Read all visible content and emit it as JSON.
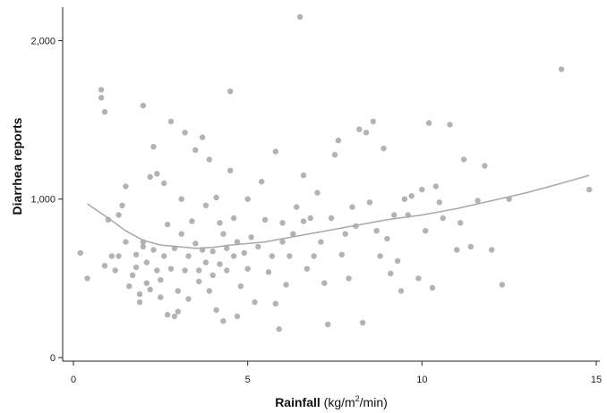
{
  "chart_data": {
    "type": "scatter",
    "title": "",
    "xlabel": {
      "bold": "Rainfall",
      "rest_open": " (kg/m",
      "sup": "2",
      "rest_close": "/min)"
    },
    "ylabel": "Diarrhea reports",
    "xlim": [
      0,
      15
    ],
    "ylim": [
      0,
      2200
    ],
    "xticks": [
      0,
      5,
      10,
      15
    ],
    "xtick_labels": [
      "0",
      "5",
      "10",
      "15"
    ],
    "yticks": [
      0,
      1000,
      2000
    ],
    "ytick_labels": [
      "0",
      "1,000",
      "2,000"
    ],
    "grid": false,
    "legend": "none",
    "point_color": "#9a9a9a",
    "line_color": "#a8a8a8",
    "points": [
      [
        0.2,
        660
      ],
      [
        0.4,
        500
      ],
      [
        0.8,
        1690
      ],
      [
        0.8,
        1640
      ],
      [
        0.9,
        1550
      ],
      [
        0.9,
        580
      ],
      [
        1.0,
        870
      ],
      [
        1.1,
        640
      ],
      [
        1.2,
        550
      ],
      [
        1.3,
        900
      ],
      [
        1.3,
        640
      ],
      [
        1.4,
        960
      ],
      [
        1.5,
        730
      ],
      [
        1.5,
        1080
      ],
      [
        1.6,
        450
      ],
      [
        1.7,
        520
      ],
      [
        1.8,
        570
      ],
      [
        1.8,
        650
      ],
      [
        1.9,
        350
      ],
      [
        1.9,
        400
      ],
      [
        2.0,
        700
      ],
      [
        2.0,
        730
      ],
      [
        2.0,
        1590
      ],
      [
        2.1,
        600
      ],
      [
        2.1,
        470
      ],
      [
        2.2,
        430
      ],
      [
        2.2,
        1140
      ],
      [
        2.3,
        680
      ],
      [
        2.3,
        1330
      ],
      [
        2.4,
        1160
      ],
      [
        2.4,
        550
      ],
      [
        2.5,
        490
      ],
      [
        2.5,
        380
      ],
      [
        2.6,
        1100
      ],
      [
        2.6,
        640
      ],
      [
        2.7,
        270
      ],
      [
        2.7,
        840
      ],
      [
        2.8,
        560
      ],
      [
        2.8,
        1490
      ],
      [
        2.9,
        690
      ],
      [
        2.9,
        260
      ],
      [
        3.0,
        290
      ],
      [
        3.0,
        420
      ],
      [
        3.1,
        780
      ],
      [
        3.1,
        1000
      ],
      [
        3.2,
        1420
      ],
      [
        3.2,
        550
      ],
      [
        3.3,
        640
      ],
      [
        3.3,
        370
      ],
      [
        3.4,
        860
      ],
      [
        3.5,
        1310
      ],
      [
        3.5,
        720
      ],
      [
        3.6,
        480
      ],
      [
        3.6,
        550
      ],
      [
        3.7,
        680
      ],
      [
        3.7,
        1390
      ],
      [
        3.8,
        600
      ],
      [
        3.8,
        960
      ],
      [
        3.9,
        1250
      ],
      [
        3.9,
        420
      ],
      [
        4.0,
        520
      ],
      [
        4.0,
        670
      ],
      [
        4.1,
        1010
      ],
      [
        4.1,
        300
      ],
      [
        4.2,
        590
      ],
      [
        4.2,
        850
      ],
      [
        4.3,
        780
      ],
      [
        4.3,
        230
      ],
      [
        4.4,
        690
      ],
      [
        4.4,
        550
      ],
      [
        4.5,
        1680
      ],
      [
        4.5,
        1180
      ],
      [
        4.6,
        640
      ],
      [
        4.6,
        880
      ],
      [
        4.7,
        730
      ],
      [
        4.7,
        260
      ],
      [
        4.8,
        450
      ],
      [
        4.9,
        660
      ],
      [
        5.0,
        1000
      ],
      [
        5.0,
        560
      ],
      [
        5.1,
        760
      ],
      [
        5.2,
        350
      ],
      [
        5.3,
        700
      ],
      [
        5.4,
        1110
      ],
      [
        5.5,
        870
      ],
      [
        5.6,
        540
      ],
      [
        5.7,
        640
      ],
      [
        5.8,
        340
      ],
      [
        5.8,
        1300
      ],
      [
        5.9,
        180
      ],
      [
        6.0,
        850
      ],
      [
        6.0,
        730
      ],
      [
        6.1,
        460
      ],
      [
        6.2,
        640
      ],
      [
        6.3,
        780
      ],
      [
        6.4,
        950
      ],
      [
        6.5,
        2150
      ],
      [
        6.6,
        860
      ],
      [
        6.6,
        1150
      ],
      [
        6.7,
        560
      ],
      [
        6.8,
        880
      ],
      [
        6.9,
        640
      ],
      [
        7.0,
        1040
      ],
      [
        7.1,
        730
      ],
      [
        7.2,
        470
      ],
      [
        7.3,
        210
      ],
      [
        7.4,
        880
      ],
      [
        7.5,
        1280
      ],
      [
        7.6,
        1370
      ],
      [
        7.7,
        650
      ],
      [
        7.8,
        780
      ],
      [
        7.9,
        500
      ],
      [
        8.0,
        950
      ],
      [
        8.1,
        830
      ],
      [
        8.2,
        1440
      ],
      [
        8.3,
        220
      ],
      [
        8.4,
        1420
      ],
      [
        8.5,
        980
      ],
      [
        8.6,
        1490
      ],
      [
        8.7,
        800
      ],
      [
        8.8,
        640
      ],
      [
        8.9,
        1320
      ],
      [
        9.0,
        750
      ],
      [
        9.1,
        530
      ],
      [
        9.2,
        900
      ],
      [
        9.3,
        610
      ],
      [
        9.4,
        420
      ],
      [
        9.5,
        1000
      ],
      [
        9.6,
        900
      ],
      [
        9.7,
        1020
      ],
      [
        9.9,
        500
      ],
      [
        10.0,
        1060
      ],
      [
        10.1,
        800
      ],
      [
        10.2,
        1480
      ],
      [
        10.3,
        440
      ],
      [
        10.4,
        1080
      ],
      [
        10.5,
        980
      ],
      [
        10.6,
        880
      ],
      [
        10.8,
        1470
      ],
      [
        11.0,
        680
      ],
      [
        11.1,
        850
      ],
      [
        11.2,
        1250
      ],
      [
        11.4,
        700
      ],
      [
        11.6,
        990
      ],
      [
        11.8,
        1210
      ],
      [
        12.0,
        680
      ],
      [
        12.3,
        460
      ],
      [
        12.5,
        1000
      ],
      [
        14.0,
        1820
      ],
      [
        14.8,
        1060
      ]
    ],
    "trend_line": [
      [
        0.4,
        970
      ],
      [
        1.0,
        880
      ],
      [
        1.5,
        800
      ],
      [
        2.0,
        740
      ],
      [
        2.5,
        710
      ],
      [
        3.0,
        700
      ],
      [
        3.5,
        690
      ],
      [
        4.0,
        695
      ],
      [
        4.5,
        710
      ],
      [
        5.0,
        720
      ],
      [
        5.5,
        730
      ],
      [
        6.0,
        750
      ],
      [
        7.0,
        790
      ],
      [
        8.0,
        830
      ],
      [
        9.0,
        870
      ],
      [
        10.0,
        900
      ],
      [
        11.0,
        940
      ],
      [
        12.0,
        990
      ],
      [
        13.0,
        1040
      ],
      [
        14.0,
        1100
      ],
      [
        14.8,
        1150
      ]
    ]
  }
}
